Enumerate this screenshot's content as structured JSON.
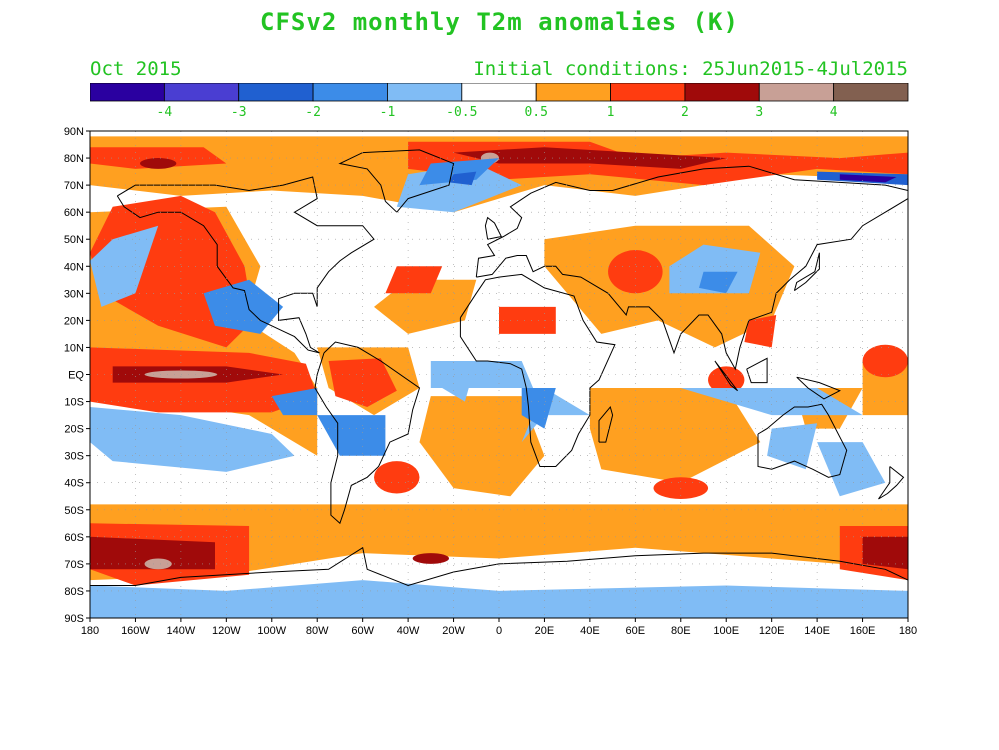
{
  "title": "CFSv2 monthly T2m anomalies (K)",
  "subtitle_left": "Oct 2015",
  "subtitle_right": "Initial conditions: 25Jun2015-4Jul2015",
  "legend": {
    "colors": [
      "#2a00a0",
      "#4a3ed2",
      "#2060d0",
      "#3c8ce8",
      "#80bcf5",
      "#ffffff",
      "#ffa020",
      "#ff3c10",
      "#a00a0a",
      "#c8a096",
      "#826050"
    ],
    "labels": [
      "-4",
      "-3",
      "-2",
      "-1",
      "-0.5",
      "0.5",
      "1",
      "2",
      "3",
      "4"
    ],
    "label_color": "#22c322"
  },
  "axes": {
    "lat_labels": [
      "90N",
      "80N",
      "70N",
      "60N",
      "50N",
      "40N",
      "30N",
      "20N",
      "10N",
      "EQ",
      "10S",
      "20S",
      "30S",
      "40S",
      "50S",
      "60S",
      "70S",
      "80S",
      "90S"
    ],
    "lon_labels": [
      "180",
      "160W",
      "140W",
      "120W",
      "100W",
      "80W",
      "60W",
      "40W",
      "20W",
      "0",
      "20E",
      "40E",
      "60E",
      "80E",
      "100E",
      "120E",
      "140E",
      "160E",
      "180"
    ]
  },
  "anomaly_colors": {
    "cold_weak": "#80bcf5",
    "cold_moderate": "#3c8ce8",
    "cold_strong": "#2060d0",
    "cold_extreme": "#2a00a0",
    "warm_weak": "#ffa020",
    "warm_moderate": "#ff3c10",
    "warm_strong": "#a00a0a",
    "warm_extreme": "#c8a096"
  }
}
